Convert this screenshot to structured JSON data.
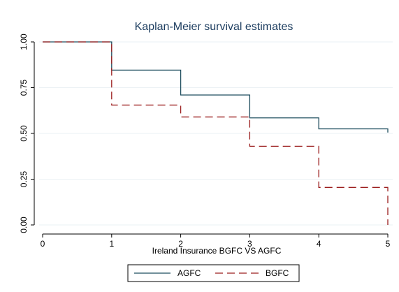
{
  "chart_data": {
    "type": "line",
    "title": "Kaplan-Meier survival estimates",
    "xlabel": "Ireland Insurance BGFC VS AGFC",
    "ylabel": "",
    "xlim": [
      0,
      5
    ],
    "ylim": [
      0,
      1
    ],
    "x_ticks": [
      "0",
      "1",
      "2",
      "3",
      "4",
      "5"
    ],
    "y_ticks": [
      "0.00",
      "0.25",
      "0.50",
      "0.75",
      "1.00"
    ],
    "grid": true,
    "legend_position": "bottom",
    "series": [
      {
        "name": "AGFC",
        "color": "#1f4e5f",
        "style": "solid-step",
        "points": [
          {
            "x": 0,
            "y": 1.0
          },
          {
            "x": 1,
            "y": 0.846
          },
          {
            "x": 2,
            "y": 0.71
          },
          {
            "x": 3,
            "y": 0.585
          },
          {
            "x": 4,
            "y": 0.525
          },
          {
            "x": 5,
            "y": 0.505
          }
        ]
      },
      {
        "name": "BGFC",
        "color": "#9b1e1e",
        "style": "dashed-step",
        "points": [
          {
            "x": 0,
            "y": 1.0
          },
          {
            "x": 1,
            "y": 0.655
          },
          {
            "x": 2,
            "y": 0.59
          },
          {
            "x": 3,
            "y": 0.43
          },
          {
            "x": 4,
            "y": 0.205
          },
          {
            "x": 5,
            "y": 0.0
          }
        ]
      }
    ]
  }
}
